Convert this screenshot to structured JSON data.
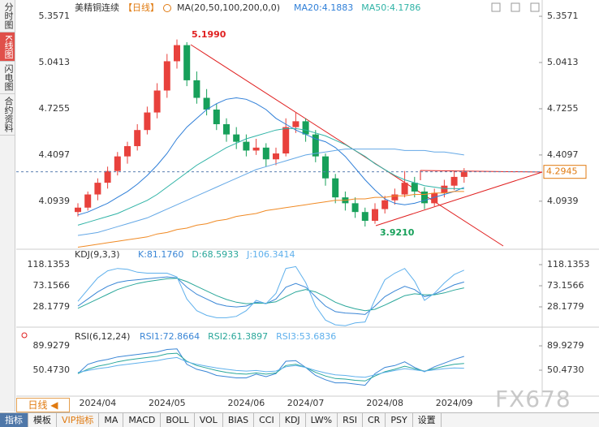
{
  "ui": {
    "side_tabs": [
      "分时图",
      "K线图",
      "闪电图",
      "合约资料"
    ],
    "period": "日线",
    "tabs": [
      "指标",
      "模板",
      "VIP指标",
      "MA",
      "MACD",
      "BOLL",
      "VOL",
      "BIAS",
      "CCI",
      "KDJ",
      "LW%",
      "RSI",
      "CR",
      "PSY",
      "设置"
    ],
    "watermark": "FX678"
  },
  "chart_data": [
    {
      "type": "candlestick",
      "title": "美精铜连续",
      "period_label": "【日线】",
      "legend_title": "MA(20,50,100,200,0,0)",
      "categories": [
        null,
        null,
        "2024/04",
        null,
        null,
        null,
        null,
        null,
        null,
        "2024/05",
        null,
        null,
        null,
        null,
        null,
        null,
        null,
        "2024/06",
        null,
        null,
        null,
        null,
        null,
        "2024/07",
        null,
        null,
        null,
        null,
        null,
        null,
        null,
        "2024/08",
        null,
        null,
        null,
        null,
        null,
        null,
        "2024/09",
        null
      ],
      "open": [
        4.02,
        4.05,
        4.14,
        4.22,
        4.3,
        4.4,
        4.47,
        4.58,
        4.7,
        4.85,
        5.05,
        5.16,
        4.92,
        4.8,
        4.72,
        4.62,
        4.55,
        4.5,
        4.44,
        4.46,
        4.38,
        4.42,
        4.6,
        4.64,
        4.55,
        4.4,
        4.25,
        4.12,
        4.08,
        4.02,
        3.96,
        4.04,
        4.1,
        4.14,
        4.22,
        4.16,
        4.08,
        4.15,
        4.2,
        4.26
      ],
      "high": [
        4.08,
        4.16,
        4.25,
        4.33,
        4.43,
        4.5,
        4.62,
        4.74,
        4.9,
        5.1,
        5.199,
        5.18,
        4.98,
        4.86,
        4.76,
        4.66,
        4.6,
        4.55,
        4.52,
        4.49,
        4.46,
        4.66,
        4.7,
        4.66,
        4.58,
        4.42,
        4.28,
        4.16,
        4.12,
        4.05,
        4.08,
        4.13,
        4.18,
        4.3,
        4.26,
        4.19,
        4.18,
        4.24,
        4.3,
        4.32
      ],
      "low": [
        3.99,
        4.03,
        4.1,
        4.18,
        4.27,
        4.35,
        4.44,
        4.55,
        4.66,
        4.8,
        5.0,
        4.88,
        4.76,
        4.68,
        4.58,
        4.5,
        4.45,
        4.4,
        4.41,
        4.33,
        4.34,
        4.4,
        4.56,
        4.5,
        4.36,
        4.2,
        4.08,
        4.03,
        3.98,
        3.921,
        3.94,
        4.01,
        4.07,
        4.12,
        4.12,
        4.04,
        4.06,
        4.12,
        4.17,
        4.22
      ],
      "close": [
        4.05,
        4.14,
        4.22,
        4.3,
        4.4,
        4.47,
        4.58,
        4.7,
        4.85,
        5.05,
        5.16,
        4.92,
        4.8,
        4.72,
        4.62,
        4.55,
        4.5,
        4.44,
        4.46,
        4.38,
        4.42,
        4.6,
        4.64,
        4.55,
        4.4,
        4.25,
        4.12,
        4.08,
        4.02,
        3.96,
        4.04,
        4.1,
        4.14,
        4.22,
        4.16,
        4.08,
        4.15,
        4.2,
        4.26,
        4.2945
      ],
      "up_color": "#e8413c",
      "down_color": "#17a05a",
      "series": [
        {
          "name": "MA20:4.1883",
          "color": "#2f7fd8",
          "values": [
            4.0,
            4.02,
            4.05,
            4.08,
            4.12,
            4.16,
            4.21,
            4.27,
            4.34,
            4.42,
            4.52,
            4.6,
            4.66,
            4.72,
            4.76,
            4.79,
            4.8,
            4.79,
            4.76,
            4.72,
            4.66,
            4.62,
            4.58,
            4.55,
            4.52,
            4.5,
            4.46,
            4.4,
            4.32,
            4.24,
            4.17,
            4.11,
            4.08,
            4.07,
            4.08,
            4.1,
            4.12,
            4.14,
            4.16,
            4.1883
          ]
        },
        {
          "name": "MA50:4.1786",
          "color": "#2fb3a6",
          "values": [
            3.93,
            3.95,
            3.97,
            3.99,
            4.01,
            4.04,
            4.07,
            4.1,
            4.14,
            4.19,
            4.24,
            4.29,
            4.34,
            4.38,
            4.42,
            4.46,
            4.49,
            4.52,
            4.54,
            4.56,
            4.58,
            4.59,
            4.59,
            4.58,
            4.56,
            4.54,
            4.51,
            4.48,
            4.44,
            4.4,
            4.35,
            4.31,
            4.27,
            4.24,
            4.22,
            4.2,
            4.19,
            4.18,
            4.18,
            4.1786
          ]
        },
        {
          "color": "#64a8e6",
          "values": [
            3.86,
            3.87,
            3.88,
            3.9,
            3.92,
            3.94,
            3.96,
            3.98,
            4.01,
            4.04,
            4.07,
            4.1,
            4.13,
            4.16,
            4.19,
            4.22,
            4.25,
            4.28,
            4.31,
            4.33,
            4.35,
            4.37,
            4.39,
            4.41,
            4.42,
            4.43,
            4.44,
            4.45,
            4.45,
            4.45,
            4.45,
            4.45,
            4.45,
            4.44,
            4.44,
            4.44,
            4.43,
            4.43,
            4.42,
            4.41
          ]
        },
        {
          "color": "#f08a24",
          "values": [
            3.78,
            3.79,
            3.8,
            3.81,
            3.82,
            3.83,
            3.84,
            3.85,
            3.87,
            3.88,
            3.9,
            3.91,
            3.93,
            3.94,
            3.96,
            3.97,
            3.99,
            4.0,
            4.01,
            4.03,
            4.04,
            4.05,
            4.06,
            4.07,
            4.08,
            4.09,
            4.1,
            4.1,
            4.11,
            4.11,
            4.12,
            4.12,
            4.13,
            4.13,
            4.14,
            4.14,
            4.15,
            4.15,
            4.16,
            4.16
          ]
        }
      ],
      "annotations": [
        "5.1990",
        "3.9210"
      ],
      "ylim": [
        3.777,
        5.424
      ],
      "yticks": [
        5.3571,
        5.0413,
        4.7255,
        4.4097,
        4.0939
      ],
      "grid": false
    },
    {
      "type": "line",
      "legend_title": "KDJ(9,3,3)",
      "ylim": [
        -13.3,
        147.5
      ],
      "yticks": [
        118.1353,
        73.1566,
        28.1779
      ],
      "grid": false,
      "series": [
        {
          "name": "K:81.1760",
          "color": "#3a86d6",
          "values": [
            30,
            45,
            60,
            72,
            80,
            84,
            86,
            88,
            90,
            92,
            90,
            70,
            55,
            45,
            35,
            30,
            28,
            30,
            38,
            35,
            45,
            70,
            78,
            70,
            50,
            30,
            18,
            15,
            14,
            12,
            30,
            50,
            62,
            72,
            65,
            50,
            55,
            65,
            75,
            81.176
          ]
        },
        {
          "name": "D:68.5933",
          "color": "#2aa79a",
          "values": [
            25,
            35,
            45,
            55,
            65,
            72,
            78,
            82,
            85,
            88,
            89,
            82,
            72,
            62,
            52,
            44,
            38,
            35,
            36,
            36,
            39,
            50,
            60,
            65,
            60,
            50,
            38,
            30,
            24,
            20,
            23,
            32,
            42,
            52,
            56,
            54,
            54,
            58,
            64,
            68.5933
          ]
        },
        {
          "name": "J:106.3414",
          "color": "#5fb0ec",
          "values": [
            40,
            65,
            90,
            105,
            110,
            108,
            102,
            100,
            100,
            100,
            92,
            45,
            20,
            10,
            5,
            5,
            8,
            20,
            42,
            35,
            57,
            110,
            114,
            80,
            30,
            0,
            -10,
            -12,
            -6,
            -4,
            44,
            86,
            100,
            110,
            83,
            42,
            57,
            79,
            97,
            106.3414
          ]
        }
      ]
    },
    {
      "type": "line",
      "legend_title": "RSI(6,12,24)",
      "ylim": [
        9.7,
        117.6
      ],
      "yticks": [
        89.9279,
        {
          "value": 50.473,
          "label": "50.4730"
        }
      ],
      "grid": false,
      "series": [
        {
          "name": "RSI1:72.8664",
          "color": "#3a86d6",
          "values": [
            45,
            60,
            65,
            68,
            72,
            74,
            76,
            78,
            80,
            84,
            85,
            60,
            52,
            48,
            42,
            40,
            38,
            38,
            44,
            40,
            45,
            65,
            66,
            55,
            42,
            35,
            30,
            30,
            28,
            26,
            45,
            55,
            58,
            64,
            55,
            48,
            56,
            62,
            68,
            72.8664
          ]
        },
        {
          "name": "RSI2:61.3897",
          "color": "#2aa79a",
          "values": [
            45,
            52,
            57,
            60,
            64,
            67,
            69,
            71,
            73,
            77,
            78,
            65,
            58,
            54,
            50,
            47,
            45,
            44,
            46,
            44,
            46,
            58,
            60,
            55,
            47,
            41,
            37,
            36,
            34,
            33,
            41,
            48,
            52,
            57,
            53,
            49,
            53,
            57,
            60,
            61.3897
          ]
        },
        {
          "name": "RSI3:53.6836",
          "color": "#5fb0ec",
          "values": [
            47,
            50,
            53,
            55,
            58,
            60,
            62,
            64,
            66,
            69,
            71,
            64,
            60,
            57,
            54,
            52,
            50,
            49,
            50,
            48,
            49,
            56,
            58,
            55,
            50,
            46,
            43,
            42,
            40,
            39,
            43,
            47,
            50,
            53,
            51,
            49,
            51,
            53,
            54,
            53.6836
          ]
        }
      ]
    }
  ]
}
